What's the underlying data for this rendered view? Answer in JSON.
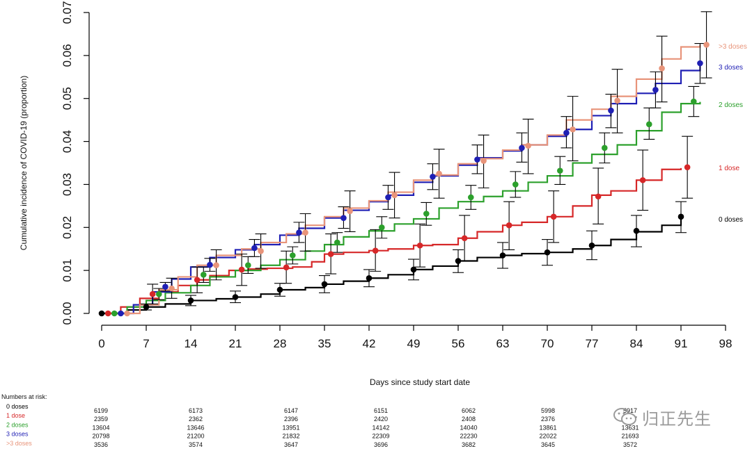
{
  "chart_data": {
    "type": "line",
    "xlabel": "Days since study start date",
    "ylabel": "Cumulative incidence of COVID-19 (proportion)",
    "xlim": [
      0,
      98
    ],
    "ylim": [
      0,
      0.07
    ],
    "x_ticks": [
      "0",
      "7",
      "14",
      "21",
      "28",
      "35",
      "42",
      "49",
      "56",
      "63",
      "70",
      "77",
      "84",
      "91",
      "98"
    ],
    "y_ticks": [
      "0.00",
      "0.01",
      "0.02",
      "0.03",
      "0.04",
      "0.05",
      "0.06",
      "0.07"
    ],
    "grid": false,
    "legend_position": "right",
    "series": [
      {
        "name": "0 doses",
        "color": "#000000",
        "curve": [
          [
            0,
            0
          ],
          [
            4,
            0.0008
          ],
          [
            7,
            0.0015
          ],
          [
            10,
            0.0022
          ],
          [
            14,
            0.003
          ],
          [
            18,
            0.0034
          ],
          [
            21,
            0.0038
          ],
          [
            25,
            0.0045
          ],
          [
            28,
            0.0055
          ],
          [
            32,
            0.006
          ],
          [
            35,
            0.0068
          ],
          [
            38,
            0.0075
          ],
          [
            42,
            0.0082
          ],
          [
            45,
            0.009
          ],
          [
            49,
            0.0102
          ],
          [
            52,
            0.011
          ],
          [
            56,
            0.0122
          ],
          [
            59,
            0.013
          ],
          [
            63,
            0.0135
          ],
          [
            66,
            0.0139
          ],
          [
            70,
            0.0142
          ],
          [
            74,
            0.015
          ],
          [
            77,
            0.0158
          ],
          [
            80,
            0.0172
          ],
          [
            84,
            0.019
          ],
          [
            88,
            0.0205
          ],
          [
            91,
            0.022
          ]
        ],
        "points": [
          {
            "x": 0,
            "y": 0,
            "lo": 0,
            "hi": 0
          },
          {
            "x": 7,
            "y": 0.0015,
            "lo": 0.0008,
            "hi": 0.0022
          },
          {
            "x": 14,
            "y": 0.003,
            "lo": 0.0018,
            "hi": 0.0042
          },
          {
            "x": 21,
            "y": 0.0038,
            "lo": 0.0025,
            "hi": 0.0052
          },
          {
            "x": 28,
            "y": 0.0055,
            "lo": 0.004,
            "hi": 0.007
          },
          {
            "x": 35,
            "y": 0.0068,
            "lo": 0.0048,
            "hi": 0.0088
          },
          {
            "x": 42,
            "y": 0.0082,
            "lo": 0.0062,
            "hi": 0.0102
          },
          {
            "x": 49,
            "y": 0.0102,
            "lo": 0.0078,
            "hi": 0.0126
          },
          {
            "x": 56,
            "y": 0.0122,
            "lo": 0.0095,
            "hi": 0.0148
          },
          {
            "x": 63,
            "y": 0.0135,
            "lo": 0.0105,
            "hi": 0.0165
          },
          {
            "x": 70,
            "y": 0.0142,
            "lo": 0.0112,
            "hi": 0.0172
          },
          {
            "x": 77,
            "y": 0.0158,
            "lo": 0.0125,
            "hi": 0.0192
          },
          {
            "x": 84,
            "y": 0.0192,
            "lo": 0.0155,
            "hi": 0.0228
          },
          {
            "x": 91,
            "y": 0.0225,
            "lo": 0.0188,
            "hi": 0.026
          }
        ]
      },
      {
        "name": "1 dose",
        "color": "#d62728",
        "curve": [
          [
            1,
            0
          ],
          [
            3,
            0.0015
          ],
          [
            6,
            0.0035
          ],
          [
            9,
            0.005
          ],
          [
            12,
            0.0065
          ],
          [
            15,
            0.0078
          ],
          [
            17,
            0.0088
          ],
          [
            20,
            0.01
          ],
          [
            23,
            0.0103
          ],
          [
            26,
            0.0105
          ],
          [
            30,
            0.0108
          ],
          [
            33,
            0.012
          ],
          [
            35,
            0.0138
          ],
          [
            38,
            0.0142
          ],
          [
            42,
            0.0146
          ],
          [
            45,
            0.015
          ],
          [
            49,
            0.0158
          ],
          [
            52,
            0.016
          ],
          [
            56,
            0.0175
          ],
          [
            59,
            0.019
          ],
          [
            63,
            0.0205
          ],
          [
            66,
            0.0212
          ],
          [
            70,
            0.0225
          ],
          [
            74,
            0.025
          ],
          [
            77,
            0.0275
          ],
          [
            80,
            0.0285
          ],
          [
            84,
            0.031
          ],
          [
            88,
            0.0335
          ],
          [
            91,
            0.0338
          ]
        ],
        "points": [
          {
            "x": 1,
            "y": 0,
            "lo": 0,
            "hi": 0
          },
          {
            "x": 8,
            "y": 0.0045,
            "lo": 0.0022,
            "hi": 0.0068
          },
          {
            "x": 15,
            "y": 0.0078,
            "lo": 0.0048,
            "hi": 0.0108
          },
          {
            "x": 22,
            "y": 0.0102,
            "lo": 0.0065,
            "hi": 0.0138
          },
          {
            "x": 29,
            "y": 0.0107,
            "lo": 0.007,
            "hi": 0.0145
          },
          {
            "x": 36,
            "y": 0.0138,
            "lo": 0.0092,
            "hi": 0.0185
          },
          {
            "x": 43,
            "y": 0.0146,
            "lo": 0.0098,
            "hi": 0.0195
          },
          {
            "x": 50,
            "y": 0.0158,
            "lo": 0.0108,
            "hi": 0.0208
          },
          {
            "x": 57,
            "y": 0.0175,
            "lo": 0.0122,
            "hi": 0.0228
          },
          {
            "x": 64,
            "y": 0.0205,
            "lo": 0.0148,
            "hi": 0.026
          },
          {
            "x": 71,
            "y": 0.0225,
            "lo": 0.0165,
            "hi": 0.0285
          },
          {
            "x": 78,
            "y": 0.0272,
            "lo": 0.0208,
            "hi": 0.0338
          },
          {
            "x": 85,
            "y": 0.031,
            "lo": 0.024,
            "hi": 0.038
          },
          {
            "x": 92,
            "y": 0.034,
            "lo": 0.0268,
            "hi": 0.0412
          }
        ]
      },
      {
        "name": "2 doses",
        "color": "#2ca02c",
        "curve": [
          [
            2,
            0
          ],
          [
            4,
            0.0015
          ],
          [
            7,
            0.003
          ],
          [
            10,
            0.0048
          ],
          [
            14,
            0.0065
          ],
          [
            17,
            0.0085
          ],
          [
            21,
            0.01
          ],
          [
            25,
            0.0112
          ],
          [
            28,
            0.0125
          ],
          [
            32,
            0.0145
          ],
          [
            35,
            0.016
          ],
          [
            38,
            0.0178
          ],
          [
            42,
            0.0192
          ],
          [
            46,
            0.0208
          ],
          [
            49,
            0.022
          ],
          [
            53,
            0.0245
          ],
          [
            56,
            0.026
          ],
          [
            60,
            0.0272
          ],
          [
            63,
            0.0285
          ],
          [
            67,
            0.0305
          ],
          [
            70,
            0.032
          ],
          [
            74,
            0.035
          ],
          [
            77,
            0.037
          ],
          [
            81,
            0.0392
          ],
          [
            84,
            0.0425
          ],
          [
            88,
            0.0468
          ],
          [
            91,
            0.0488
          ],
          [
            94,
            0.0492
          ]
        ],
        "points": [
          {
            "x": 2,
            "y": 0,
            "lo": 0,
            "hi": 0
          },
          {
            "x": 9,
            "y": 0.0045,
            "lo": 0.0032,
            "hi": 0.0058
          },
          {
            "x": 16,
            "y": 0.009,
            "lo": 0.0072,
            "hi": 0.0108
          },
          {
            "x": 23,
            "y": 0.0112,
            "lo": 0.0093,
            "hi": 0.0132
          },
          {
            "x": 30,
            "y": 0.0135,
            "lo": 0.0115,
            "hi": 0.0155
          },
          {
            "x": 37,
            "y": 0.0165,
            "lo": 0.0142,
            "hi": 0.0188
          },
          {
            "x": 44,
            "y": 0.02,
            "lo": 0.0175,
            "hi": 0.0225
          },
          {
            "x": 51,
            "y": 0.0232,
            "lo": 0.0205,
            "hi": 0.0258
          },
          {
            "x": 58,
            "y": 0.027,
            "lo": 0.0242,
            "hi": 0.0298
          },
          {
            "x": 65,
            "y": 0.03,
            "lo": 0.027,
            "hi": 0.033
          },
          {
            "x": 72,
            "y": 0.0332,
            "lo": 0.03,
            "hi": 0.0365
          },
          {
            "x": 79,
            "y": 0.0385,
            "lo": 0.035,
            "hi": 0.042
          },
          {
            "x": 86,
            "y": 0.044,
            "lo": 0.0405,
            "hi": 0.0478
          },
          {
            "x": 93,
            "y": 0.0493,
            "lo": 0.0458,
            "hi": 0.0528
          }
        ]
      },
      {
        "name": "3 doses",
        "color": "#1f1fb4",
        "curve": [
          [
            3,
            0
          ],
          [
            5,
            0.002
          ],
          [
            8,
            0.005
          ],
          [
            11,
            0.008
          ],
          [
            14,
            0.0108
          ],
          [
            17,
            0.013
          ],
          [
            21,
            0.0148
          ],
          [
            24,
            0.016
          ],
          [
            28,
            0.0182
          ],
          [
            31,
            0.0198
          ],
          [
            35,
            0.0222
          ],
          [
            38,
            0.024
          ],
          [
            42,
            0.026
          ],
          [
            45,
            0.0275
          ],
          [
            49,
            0.0305
          ],
          [
            52,
            0.032
          ],
          [
            56,
            0.0345
          ],
          [
            59,
            0.0362
          ],
          [
            63,
            0.0378
          ],
          [
            66,
            0.0392
          ],
          [
            70,
            0.0412
          ],
          [
            73,
            0.0428
          ],
          [
            77,
            0.046
          ],
          [
            80,
            0.0488
          ],
          [
            84,
            0.0512
          ],
          [
            87,
            0.0535
          ],
          [
            91,
            0.0565
          ],
          [
            94,
            0.058
          ]
        ],
        "points": [
          {
            "x": 3,
            "y": 0,
            "lo": 0,
            "hi": 0
          },
          {
            "x": 10,
            "y": 0.0062,
            "lo": 0.0052,
            "hi": 0.0072
          },
          {
            "x": 17,
            "y": 0.0113,
            "lo": 0.0098,
            "hi": 0.0128
          },
          {
            "x": 24,
            "y": 0.0152,
            "lo": 0.0132,
            "hi": 0.0172
          },
          {
            "x": 31,
            "y": 0.0188,
            "lo": 0.0165,
            "hi": 0.0212
          },
          {
            "x": 38,
            "y": 0.0222,
            "lo": 0.0198,
            "hi": 0.0248
          },
          {
            "x": 45,
            "y": 0.027,
            "lo": 0.0242,
            "hi": 0.0298
          },
          {
            "x": 52,
            "y": 0.0318,
            "lo": 0.0288,
            "hi": 0.0348
          },
          {
            "x": 59,
            "y": 0.0358,
            "lo": 0.0325,
            "hi": 0.0392
          },
          {
            "x": 66,
            "y": 0.0385,
            "lo": 0.0352,
            "hi": 0.042
          },
          {
            "x": 73,
            "y": 0.042,
            "lo": 0.0385,
            "hi": 0.0458
          },
          {
            "x": 80,
            "y": 0.0472,
            "lo": 0.0432,
            "hi": 0.051
          },
          {
            "x": 87,
            "y": 0.052,
            "lo": 0.0478,
            "hi": 0.0562
          },
          {
            "x": 94,
            "y": 0.0582,
            "lo": 0.0535,
            "hi": 0.0628
          }
        ]
      },
      {
        "name": ">3 doses",
        "color": "#e8947a",
        "curve": [
          [
            4,
            0
          ],
          [
            6,
            0.002
          ],
          [
            9,
            0.0055
          ],
          [
            12,
            0.0085
          ],
          [
            15,
            0.0112
          ],
          [
            18,
            0.0135
          ],
          [
            22,
            0.015
          ],
          [
            25,
            0.0165
          ],
          [
            29,
            0.0185
          ],
          [
            32,
            0.0205
          ],
          [
            35,
            0.0225
          ],
          [
            38,
            0.0245
          ],
          [
            42,
            0.0262
          ],
          [
            45,
            0.0282
          ],
          [
            49,
            0.031
          ],
          [
            52,
            0.0322
          ],
          [
            56,
            0.0348
          ],
          [
            59,
            0.036
          ],
          [
            63,
            0.038
          ],
          [
            66,
            0.0392
          ],
          [
            70,
            0.0415
          ],
          [
            73,
            0.045
          ],
          [
            77,
            0.0475
          ],
          [
            80,
            0.0505
          ],
          [
            84,
            0.0545
          ],
          [
            88,
            0.0592
          ],
          [
            91,
            0.062
          ],
          [
            94,
            0.0625
          ]
        ],
        "points": [
          {
            "x": 4,
            "y": 0,
            "lo": 0,
            "hi": 0
          },
          {
            "x": 11,
            "y": 0.0058,
            "lo": 0.0035,
            "hi": 0.0082
          },
          {
            "x": 18,
            "y": 0.0112,
            "lo": 0.0078,
            "hi": 0.0148
          },
          {
            "x": 25,
            "y": 0.0145,
            "lo": 0.0105,
            "hi": 0.0185
          },
          {
            "x": 32,
            "y": 0.0188,
            "lo": 0.0145,
            "hi": 0.0232
          },
          {
            "x": 39,
            "y": 0.0238,
            "lo": 0.019,
            "hi": 0.0285
          },
          {
            "x": 46,
            "y": 0.0275,
            "lo": 0.0222,
            "hi": 0.0328
          },
          {
            "x": 53,
            "y": 0.0325,
            "lo": 0.0268,
            "hi": 0.0382
          },
          {
            "x": 60,
            "y": 0.0355,
            "lo": 0.0292,
            "hi": 0.0415
          },
          {
            "x": 67,
            "y": 0.039,
            "lo": 0.0325,
            "hi": 0.0452
          },
          {
            "x": 74,
            "y": 0.0428,
            "lo": 0.0355,
            "hi": 0.0505
          },
          {
            "x": 81,
            "y": 0.0495,
            "lo": 0.042,
            "hi": 0.0568
          },
          {
            "x": 88,
            "y": 0.057,
            "lo": 0.0492,
            "hi": 0.0645
          },
          {
            "x": 95,
            "y": 0.0625,
            "lo": 0.0548,
            "hi": 0.0702
          }
        ]
      }
    ],
    "risk_table": {
      "title": "Numbers at risk:",
      "rows": [
        {
          "label": "0 doses",
          "color": "#000000",
          "values": [
            "6199",
            "6173",
            "6147",
            "6151",
            "6062",
            "5998",
            "5917"
          ]
        },
        {
          "label": "1 dose",
          "color": "#d62728",
          "values": [
            "2359",
            "2362",
            "2396",
            "2420",
            "2408",
            "2376",
            "2327"
          ]
        },
        {
          "label": "2 doses",
          "color": "#2ca02c",
          "values": [
            "13604",
            "13646",
            "13951",
            "14142",
            "14040",
            "13861",
            "13631"
          ]
        },
        {
          "label": "3 doses",
          "color": "#1f1fb4",
          "values": [
            "20798",
            "21200",
            "21832",
            "22309",
            "22230",
            "22022",
            "21693"
          ]
        },
        {
          "label": ">3 doses",
          "color": "#e8947a",
          "values": [
            "3536",
            "3574",
            "3647",
            "3696",
            "3682",
            "3645",
            "3572"
          ]
        }
      ]
    }
  },
  "watermark": {
    "text": "归正先生",
    "icon": "wechat-icon"
  }
}
